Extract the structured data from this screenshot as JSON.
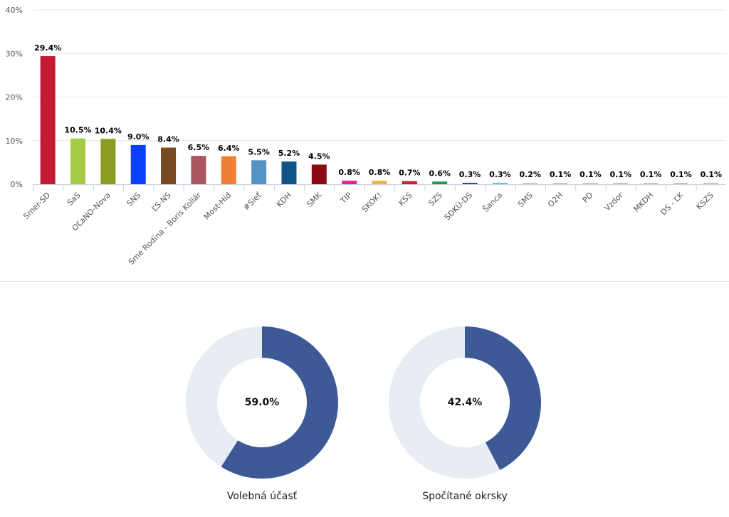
{
  "chart_data": [
    {
      "type": "bar",
      "title": "",
      "xlabel": "",
      "ylabel": "",
      "ylim": [
        0,
        40
      ],
      "yticks": [
        "0%",
        "10%",
        "20%",
        "30%",
        "40%"
      ],
      "grid": true,
      "categories": [
        "Smer-SD",
        "SaS",
        "OĽaNO-Nova",
        "SNS",
        "ĽS-NS",
        "Sme Rodina - Boris Kollár",
        "Most-Híd",
        "#Sieť",
        "KDH",
        "SMK",
        "TIP",
        "SKOK!",
        "KSS",
        "SZS",
        "SDKÚ-DS",
        "Šanca",
        "SMS",
        "O2H",
        "PD",
        "Vzdor",
        "MKDH",
        "DS - ĽK",
        "KSZS"
      ],
      "values": [
        29.4,
        10.5,
        10.4,
        9.0,
        8.4,
        6.5,
        6.4,
        5.5,
        5.2,
        4.5,
        0.8,
        0.8,
        0.7,
        0.6,
        0.3,
        0.3,
        0.2,
        0.1,
        0.1,
        0.1,
        0.1,
        0.1,
        0.1
      ],
      "data_labels": [
        "29.4%",
        "10.5%",
        "10.4%",
        "9.0%",
        "8.4%",
        "6.5%",
        "6.4%",
        "5.5%",
        "5.2%",
        "4.5%",
        "0.8%",
        "0.8%",
        "0.7%",
        "0.6%",
        "0.3%",
        "0.3%",
        "0.2%",
        "0.1%",
        "0.1%",
        "0.1%",
        "0.1%",
        "0.1%",
        "0.1%"
      ],
      "colors": [
        "#c41a33",
        "#a6cc46",
        "#8c9c23",
        "#0a3fff",
        "#784a22",
        "#a9565e",
        "#f07f33",
        "#5593c4",
        "#0d5489",
        "#8a0b14",
        "#e0239a",
        "#f0b442",
        "#d4202a",
        "#1c9a3c",
        "#2d4f8f",
        "#5ec2e8",
        "#c8c8c8",
        "#c8c8c8",
        "#c8c8c8",
        "#c8c8c8",
        "#c8c8c8",
        "#c8c8c8",
        "#c8c8c8"
      ]
    },
    {
      "type": "pie",
      "subtype": "donut",
      "label": "Volebná účasť",
      "value": 59.0,
      "value_label": "59.0%",
      "colors": {
        "filled": "#3d5a97",
        "empty": "#e8ecf3"
      }
    },
    {
      "type": "pie",
      "subtype": "donut",
      "label": "Spočítané okrsky",
      "value": 42.4,
      "value_label": "42.4%",
      "colors": {
        "filled": "#3d5a97",
        "empty": "#e8ecf3"
      }
    }
  ]
}
